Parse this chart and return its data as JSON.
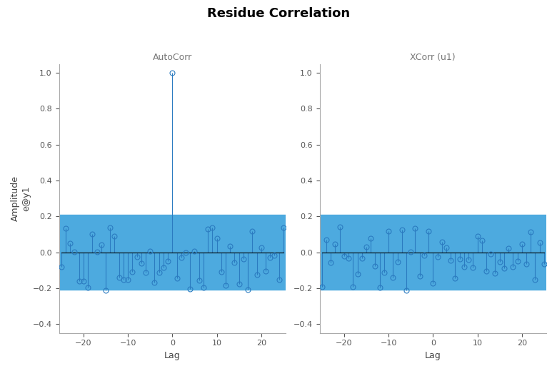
{
  "title": "Residue Correlation",
  "ax1_title": "AutoCorr",
  "ax2_title": "XCorr (u1)",
  "ylabel": "Amplitude\ne@y1",
  "xlabel": "Lag",
  "confidence_band": 0.21,
  "ylim": [
    -0.45,
    1.05
  ],
  "xlim": [
    -25.5,
    25.5
  ],
  "bar_color": "#4DAADF",
  "line_color": "#2B7BC0",
  "title_fontsize": 13,
  "subplot_title_fontsize": 9,
  "background_color": "#ffffff",
  "seed_autocorr": 42,
  "seed_xcorr": 7,
  "n_lags": 25,
  "autocorr_zero_lag": 1.0
}
